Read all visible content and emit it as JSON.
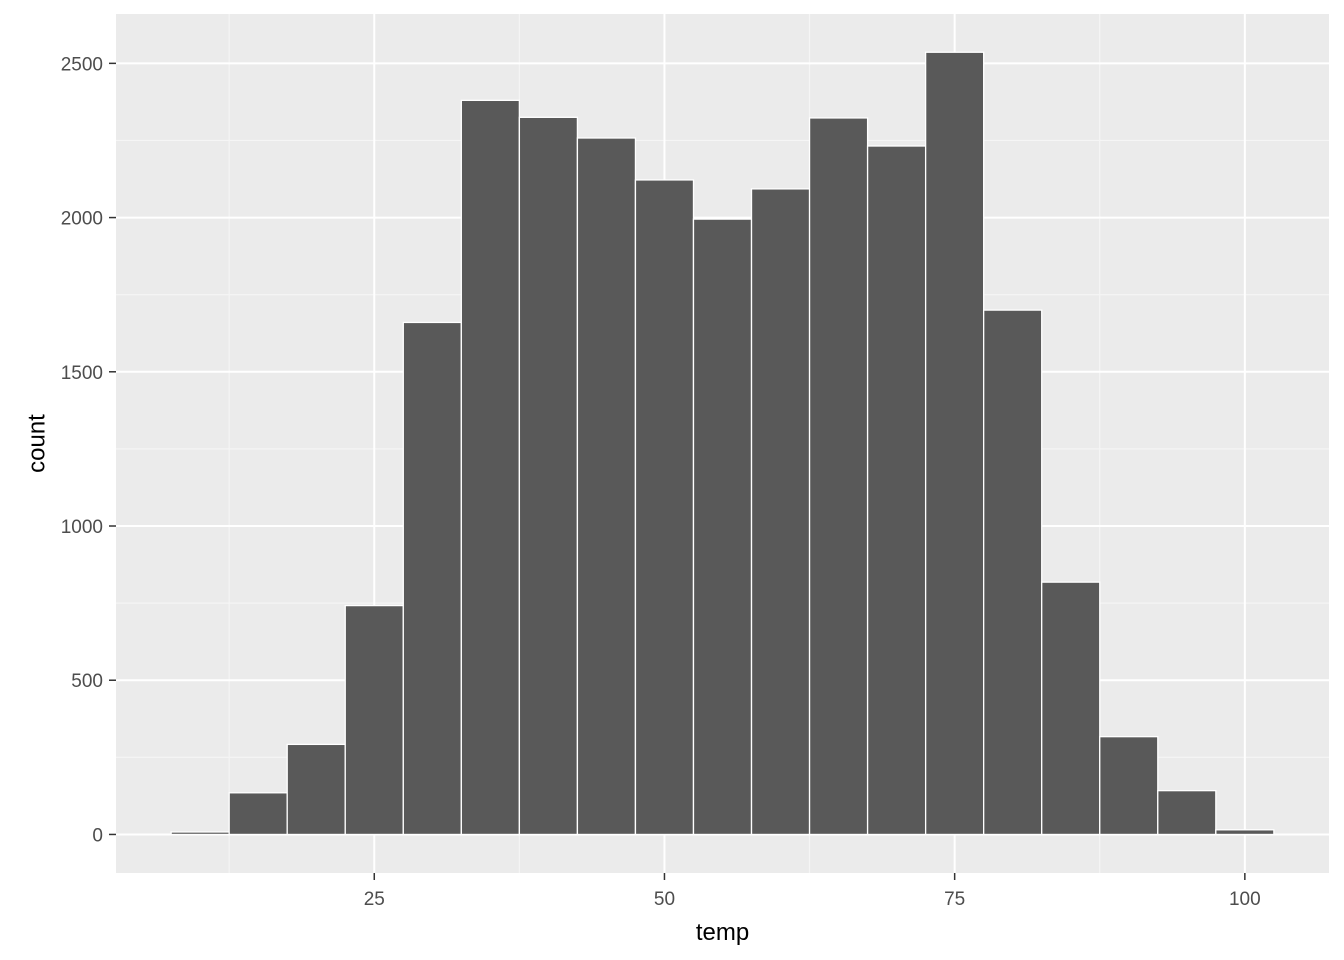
{
  "chart_data": {
    "type": "bar",
    "subtype": "histogram",
    "title": "",
    "xlabel": "temp",
    "ylabel": "count",
    "bin_width": 5,
    "bins": [
      {
        "start": 7.5,
        "end": 12.5,
        "count": 8
      },
      {
        "start": 12.5,
        "end": 17.5,
        "count": 135
      },
      {
        "start": 17.5,
        "end": 22.5,
        "count": 292
      },
      {
        "start": 22.5,
        "end": 27.5,
        "count": 742
      },
      {
        "start": 27.5,
        "end": 32.5,
        "count": 1660
      },
      {
        "start": 32.5,
        "end": 37.5,
        "count": 2380
      },
      {
        "start": 37.5,
        "end": 42.5,
        "count": 2325
      },
      {
        "start": 42.5,
        "end": 47.5,
        "count": 2258
      },
      {
        "start": 47.5,
        "end": 52.5,
        "count": 2122
      },
      {
        "start": 52.5,
        "end": 57.5,
        "count": 1995
      },
      {
        "start": 57.5,
        "end": 62.5,
        "count": 2093
      },
      {
        "start": 62.5,
        "end": 67.5,
        "count": 2323
      },
      {
        "start": 67.5,
        "end": 72.5,
        "count": 2232
      },
      {
        "start": 72.5,
        "end": 77.5,
        "count": 2536
      },
      {
        "start": 77.5,
        "end": 82.5,
        "count": 1700
      },
      {
        "start": 82.5,
        "end": 87.5,
        "count": 818
      },
      {
        "start": 87.5,
        "end": 92.5,
        "count": 317
      },
      {
        "start": 92.5,
        "end": 97.5,
        "count": 142
      },
      {
        "start": 97.5,
        "end": 102.5,
        "count": 15
      }
    ],
    "xlim": [
      2.75,
      107.25
    ],
    "ylim": [
      -125,
      2660
    ],
    "x_ticks": [
      25,
      50,
      75,
      100
    ],
    "x_tick_labels": [
      "25",
      "50",
      "75",
      "100"
    ],
    "y_ticks": [
      0,
      500,
      1000,
      1500,
      2000,
      2500
    ],
    "y_tick_labels": [
      "0",
      "500",
      "1000",
      "1500",
      "2000",
      "2500"
    ],
    "grid": true,
    "legend": "none",
    "colors": {
      "panel_background": "#ebebeb",
      "grid_major": "#ffffff",
      "grid_minor": "#f5f5f5",
      "bar_fill": "#595959",
      "bar_outline": "#ffffff",
      "tick_label": "#4d4d4d",
      "tick_mark": "#333333",
      "axis_title": "#000000"
    }
  }
}
